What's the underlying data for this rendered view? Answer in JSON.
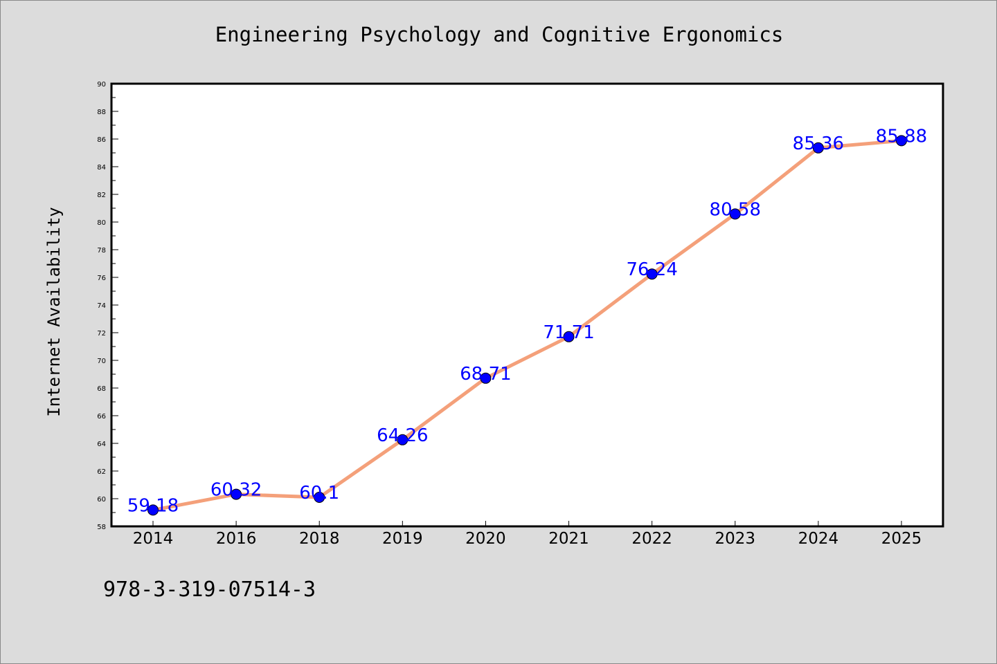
{
  "chart_data": {
    "type": "line",
    "title": "Engineering Psychology and Cognitive Ergonomics",
    "xlabel": "",
    "ylabel": "Internet Availability",
    "categories": [
      "2014",
      "2016",
      "2018",
      "2019",
      "2020",
      "2021",
      "2022",
      "2023",
      "2024",
      "2025"
    ],
    "series": [
      {
        "values": [
          59.18,
          60.32,
          60.1,
          64.26,
          68.71,
          71.71,
          76.24,
          80.58,
          85.36,
          85.88
        ],
        "data_labels": [
          "59.18",
          "60.32",
          "60.1",
          "64.26",
          "68.71",
          "71.71",
          "76.24",
          "80.58",
          "85.36",
          "85.88"
        ],
        "line_color": "#f4a07a",
        "marker_color": "#0000ff"
      }
    ],
    "ylim": [
      58,
      90
    ],
    "yticks": [
      "58",
      "60",
      "62",
      "64",
      "66",
      "68",
      "70",
      "72",
      "74",
      "76",
      "78",
      "80",
      "82",
      "84",
      "86",
      "88",
      "90"
    ],
    "grid": false,
    "legend": "none"
  },
  "footer_note": "978-3-319-07514-3",
  "colors": {
    "background": "#dcdcdc",
    "plot_background": "#ffffff",
    "line": "#f4a07a",
    "marker": "#0000ff",
    "data_label": "#0000ff"
  }
}
